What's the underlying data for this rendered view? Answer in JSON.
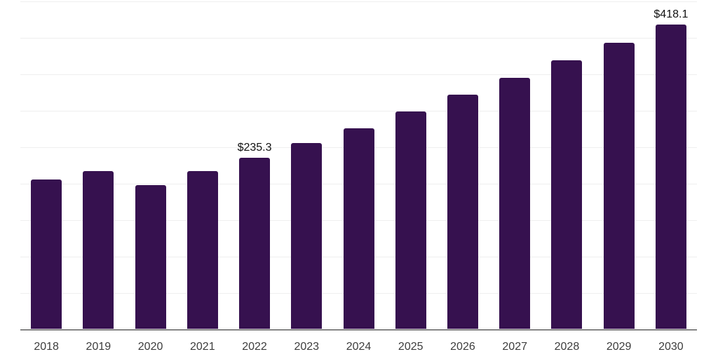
{
  "chart_data": {
    "type": "bar",
    "title": "",
    "xlabel": "",
    "ylabel": "",
    "categories": [
      "2018",
      "2019",
      "2020",
      "2021",
      "2022",
      "2023",
      "2024",
      "2025",
      "2026",
      "2027",
      "2028",
      "2029",
      "2030"
    ],
    "values": [
      205.5,
      216.7,
      198.0,
      217.3,
      235.3,
      255.4,
      276.2,
      298.7,
      322.0,
      345.0,
      369.3,
      393.6,
      418.1
    ],
    "value_labels": [
      "",
      "",
      "",
      "",
      "$235.3",
      "",
      "",
      "",
      "",
      "",
      "",
      "",
      "$418.1"
    ],
    "ylim": [
      0,
      450
    ],
    "gridline_step": 50,
    "grid": "horizontal-only",
    "legend": "none",
    "y_axis_ticks_visible": false,
    "colors": {
      "bar": "#36114F",
      "gridline": "#efefef",
      "axis_line": "#222222",
      "tick_label": "#3d3d3d",
      "value_label": "#111111",
      "background": "#ffffff"
    }
  }
}
